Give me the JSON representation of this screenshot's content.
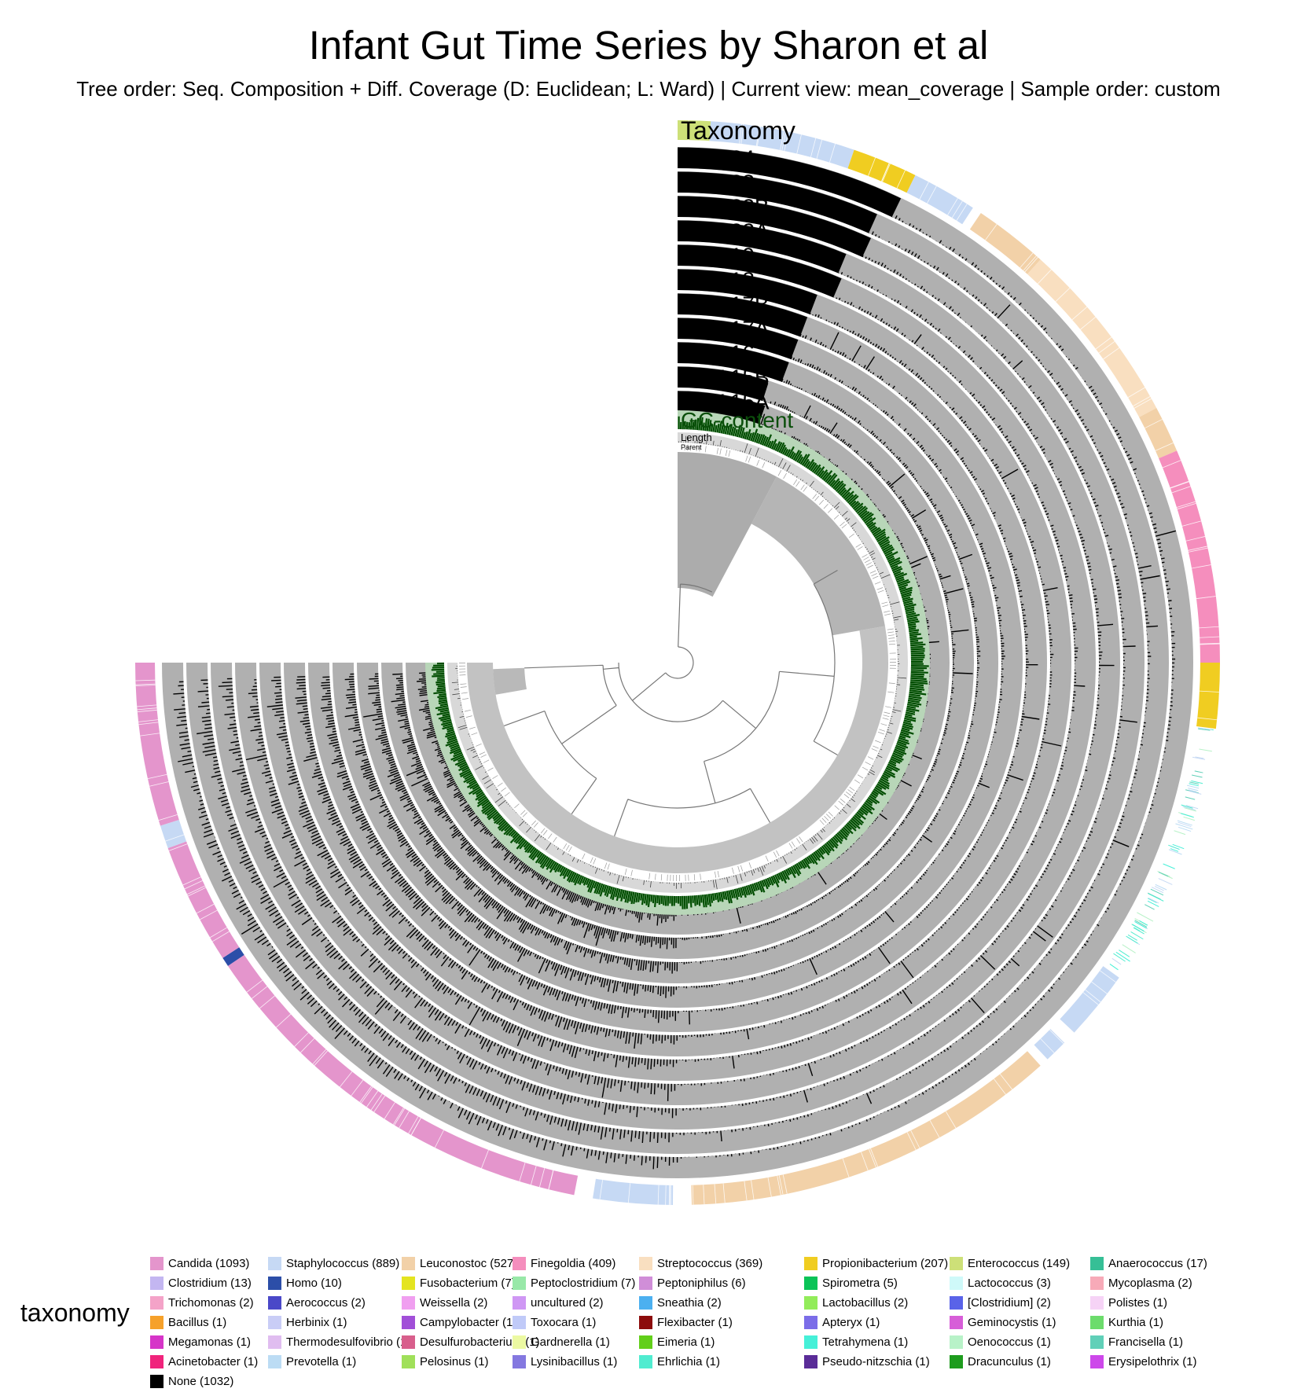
{
  "colors": {
    "background": "#ffffff",
    "layer_bg": "#b0b0b0",
    "bar": "#000000",
    "gc_bg": "#b8d6b8",
    "gc_bar": "#004d00",
    "gc_label": "#0b4f0b",
    "tree_fill": "#a8a8a8",
    "tree_line": "#777777"
  },
  "chart_data": {
    "type": "circular-phylogram",
    "title": "Infant Gut Time Series by Sharon et al",
    "subtitle": "Tree order: Seq. Composition + Diff. Coverage (D: Euclidean; L: Ward) | Current view: mean_coverage | Sample order: custom",
    "arc": {
      "start_angle_deg": 0,
      "end_angle_deg": 270,
      "direction": "clockwise-from-top"
    },
    "layers_outer_to_inner": [
      {
        "name": "Taxonomy",
        "kind": "categorical"
      },
      {
        "name": "DAY 24",
        "kind": "bar"
      },
      {
        "name": "DAY 23",
        "kind": "bar"
      },
      {
        "name": "DAY 22B",
        "kind": "bar"
      },
      {
        "name": "DAY 22A",
        "kind": "bar"
      },
      {
        "name": "DAY 19",
        "kind": "bar"
      },
      {
        "name": "DAY 18",
        "kind": "bar"
      },
      {
        "name": "DAY 17B",
        "kind": "bar"
      },
      {
        "name": "DAY 17A",
        "kind": "bar"
      },
      {
        "name": "DAY 16",
        "kind": "bar"
      },
      {
        "name": "DAY 15B",
        "kind": "bar"
      },
      {
        "name": "DAY 15A",
        "kind": "bar"
      },
      {
        "name": "GC-content",
        "kind": "bar"
      },
      {
        "name": "Length",
        "kind": "bar"
      },
      {
        "name": "Parent",
        "kind": "categorical"
      }
    ],
    "taxonomy_sectors": [
      {
        "genus": "Enterococcus",
        "start": 0.0,
        "end": 3.5
      },
      {
        "genus": "Staphylococcus",
        "start": 3.5,
        "end": 19.0
      },
      {
        "genus": "Propionibacterium",
        "start": 19.0,
        "end": 26.0
      },
      {
        "genus": "Staphylococcus",
        "start": 26.0,
        "end": 33.0
      },
      {
        "genus": "Leuconostoc",
        "start": 34.0,
        "end": 42.0
      },
      {
        "genus": "Streptococcus",
        "start": 42.0,
        "end": 62.0
      },
      {
        "genus": "Leuconostoc",
        "start": 62.0,
        "end": 67.0
      },
      {
        "genus": "Finegoldia",
        "start": 67.0,
        "end": 83.0
      },
      {
        "genus": "Finegoldia",
        "start": 83.0,
        "end": 90.0
      },
      {
        "genus": "Propionibacterium",
        "start": 90.0,
        "end": 97.0
      },
      {
        "genus": "Staphylococcus",
        "start": 125.5,
        "end": 133.0
      },
      {
        "genus": "Staphylococcus",
        "start": 134.5,
        "end": 137.0
      },
      {
        "genus": "Leuconostoc",
        "start": 138.0,
        "end": 178.5
      },
      {
        "genus": "Staphylococcus",
        "start": 180.5,
        "end": 189.0
      },
      {
        "genus": "Candida",
        "start": 191.0,
        "end": 236.0
      },
      {
        "genus": "Homo",
        "start": 236.0,
        "end": 237.0
      },
      {
        "genus": "Candida",
        "start": 237.0,
        "end": 250.0
      },
      {
        "genus": "Staphylococcus",
        "start": 250.0,
        "end": 252.5
      },
      {
        "genus": "Candida",
        "start": 252.5,
        "end": 270.0
      }
    ],
    "legend": {
      "title": "taxonomy",
      "items": [
        {
          "label": "Candida (1093)",
          "color": "#e495cc"
        },
        {
          "label": "Staphylococcus (889)",
          "color": "#c6d9f4"
        },
        {
          "label": "Leuconostoc (527)",
          "color": "#f2d1a8"
        },
        {
          "label": "Finegoldia (409)",
          "color": "#f58ebd"
        },
        {
          "label": "Streptococcus (369)",
          "color": "#f9dfc0"
        },
        {
          "label": "Propionibacterium (207)",
          "color": "#f0cd21"
        },
        {
          "label": "Enterococcus (149)",
          "color": "#cde078"
        },
        {
          "label": "Anaerococcus (17)",
          "color": "#36bf96"
        },
        {
          "label": "Clostridium (13)",
          "color": "#c3b6f1"
        },
        {
          "label": "Homo (10)",
          "color": "#2c4ea8"
        },
        {
          "label": "Fusobacterium (7)",
          "color": "#e4e420"
        },
        {
          "label": "Peptoclostridium (7)",
          "color": "#98e8a8"
        },
        {
          "label": "Peptoniphilus (6)",
          "color": "#d08ed8"
        },
        {
          "label": "Spirometra (5)",
          "color": "#0ac357"
        },
        {
          "label": "Lactococcus (3)",
          "color": "#cff9f9"
        },
        {
          "label": "Mycoplasma (2)",
          "color": "#f7aab8"
        },
        {
          "label": "Trichomonas (2)",
          "color": "#f4a3c8"
        },
        {
          "label": "Aerococcus (2)",
          "color": "#4a48c8"
        },
        {
          "label": "Weissella (2)",
          "color": "#f09ff0"
        },
        {
          "label": "uncultured (2)",
          "color": "#cf97f4"
        },
        {
          "label": "Sneathia (2)",
          "color": "#4cb0f0"
        },
        {
          "label": "Lactobacillus (2)",
          "color": "#92ec5a"
        },
        {
          "label": "[Clostridium] (2)",
          "color": "#5a63e8"
        },
        {
          "label": "Polistes (1)",
          "color": "#f6d3f6"
        },
        {
          "label": "Bacillus (1)",
          "color": "#f6a12a"
        },
        {
          "label": "Herbinix (1)",
          "color": "#c9cdf6"
        },
        {
          "label": "Campylobacter (1)",
          "color": "#a14fd8"
        },
        {
          "label": "Toxocara (1)",
          "color": "#c0caf8"
        },
        {
          "label": "Flexibacter (1)",
          "color": "#8c0c0c"
        },
        {
          "label": "Apteryx (1)",
          "color": "#7b6de8"
        },
        {
          "label": "Geminocystis (1)",
          "color": "#d75ed8"
        },
        {
          "label": "Kurthia (1)",
          "color": "#6cdc6c"
        },
        {
          "label": "Megamonas (1)",
          "color": "#d635c8"
        },
        {
          "label": "Thermodesulfovibrio (1)",
          "color": "#e0bdf0"
        },
        {
          "label": "Desulfurobacterium (1)",
          "color": "#d85f8c"
        },
        {
          "label": "Gardnerella (1)",
          "color": "#ecf9a2"
        },
        {
          "label": "Eimeria (1)",
          "color": "#62cf1a"
        },
        {
          "label": "Tetrahymena (1)",
          "color": "#46f0d8"
        },
        {
          "label": "Oenococcus (1)",
          "color": "#b8f2c8"
        },
        {
          "label": "Francisella (1)",
          "color": "#60d0b8"
        },
        {
          "label": "Acinetobacter (1)",
          "color": "#f0247c"
        },
        {
          "label": "Prevotella (1)",
          "color": "#bcdcf4"
        },
        {
          "label": "Pelosinus (1)",
          "color": "#a0e05a"
        },
        {
          "label": "Lysinibacillus (1)",
          "color": "#8478e0"
        },
        {
          "label": "Ehrlichia (1)",
          "color": "#50ecd0"
        },
        {
          "label": "Pseudo-nitzschia (1)",
          "color": "#5a2c98"
        },
        {
          "label": "Dracunculus (1)",
          "color": "#1e9c1e"
        },
        {
          "label": "Erysipelothrix (1)",
          "color": "#cd48ea"
        },
        {
          "label": "None (1032)",
          "color": "#000000"
        }
      ]
    }
  }
}
